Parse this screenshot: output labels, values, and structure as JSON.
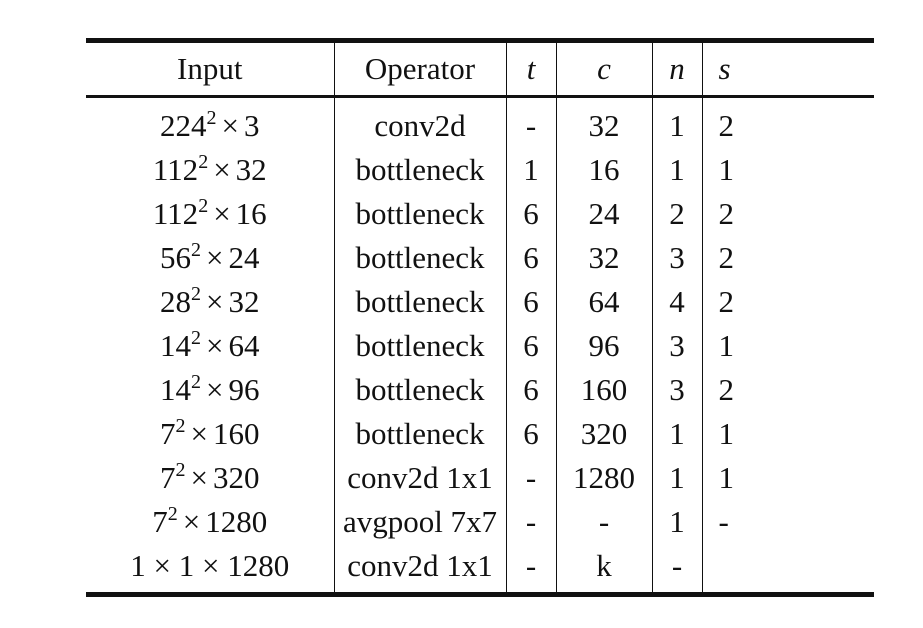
{
  "table": {
    "headers": {
      "input": "Input",
      "operator": "Operator",
      "t": "t",
      "c": "c",
      "n": "n",
      "s": "s"
    },
    "rows": [
      {
        "input_base": "224",
        "input_sup": "2",
        "input_mul": "3",
        "operator": "conv2d",
        "t": "-",
        "c": "32",
        "n": "1",
        "s": "2"
      },
      {
        "input_base": "112",
        "input_sup": "2",
        "input_mul": "32",
        "operator": "bottleneck",
        "t": "1",
        "c": "16",
        "n": "1",
        "s": "1"
      },
      {
        "input_base": "112",
        "input_sup": "2",
        "input_mul": "16",
        "operator": "bottleneck",
        "t": "6",
        "c": "24",
        "n": "2",
        "s": "2"
      },
      {
        "input_base": "56",
        "input_sup": "2",
        "input_mul": "24",
        "operator": "bottleneck",
        "t": "6",
        "c": "32",
        "n": "3",
        "s": "2"
      },
      {
        "input_base": "28",
        "input_sup": "2",
        "input_mul": "32",
        "operator": "bottleneck",
        "t": "6",
        "c": "64",
        "n": "4",
        "s": "2"
      },
      {
        "input_base": "14",
        "input_sup": "2",
        "input_mul": "64",
        "operator": "bottleneck",
        "t": "6",
        "c": "96",
        "n": "3",
        "s": "1"
      },
      {
        "input_base": "14",
        "input_sup": "2",
        "input_mul": "96",
        "operator": "bottleneck",
        "t": "6",
        "c": "160",
        "n": "3",
        "s": "2"
      },
      {
        "input_base": "7",
        "input_sup": "2",
        "input_mul": "160",
        "operator": "bottleneck",
        "t": "6",
        "c": "320",
        "n": "1",
        "s": "1"
      },
      {
        "input_base": "7",
        "input_sup": "2",
        "input_mul": "320",
        "operator": "conv2d 1x1",
        "t": "-",
        "c": "1280",
        "n": "1",
        "s": "1"
      },
      {
        "input_base": "7",
        "input_sup": "2",
        "input_mul": "1280",
        "operator": "avgpool 7x7",
        "t": "-",
        "c": "-",
        "n": "1",
        "s": "-"
      },
      {
        "input_full": "1 × 1 × 1280",
        "operator": "conv2d 1x1",
        "t": "-",
        "c": "k",
        "n": "-",
        "s": ""
      }
    ]
  }
}
